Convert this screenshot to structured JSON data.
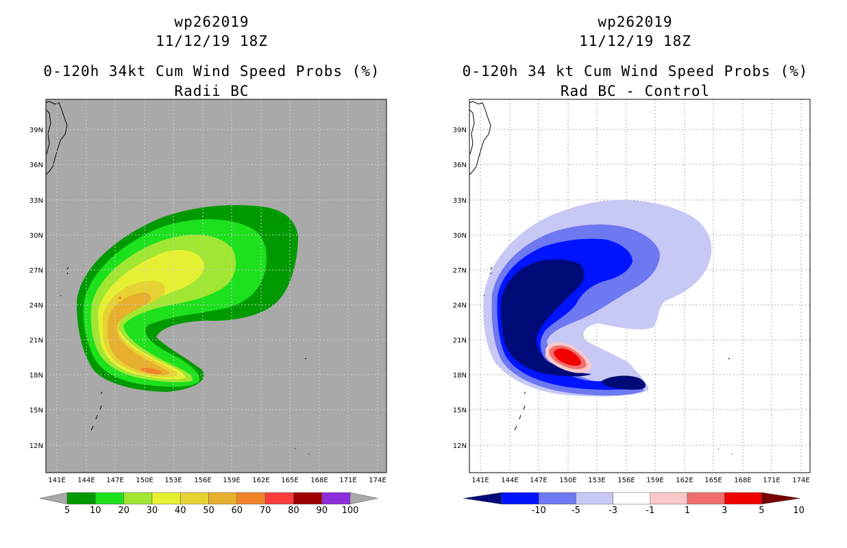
{
  "left_panel": {
    "title": [
      "wp262019",
      "11/12/19 18Z",
      "0-120h 34kt Cum Wind Speed Probs (%)",
      "Radii BC"
    ],
    "lat_labels": [
      "39N",
      "36N",
      "33N",
      "30N",
      "27N",
      "24N",
      "21N",
      "18N",
      "15N",
      "12N"
    ],
    "lon_labels": [
      "141E",
      "144E",
      "147E",
      "150E",
      "153E",
      "156E",
      "159E",
      "162E",
      "165E",
      "168E",
      "171E",
      "174E"
    ],
    "colorbar": {
      "colors": [
        "#009a00",
        "#1ee11e",
        "#a0e632",
        "#e6f032",
        "#e6d232",
        "#e6af2d",
        "#f08228",
        "#fa3c3c",
        "#a00000",
        "#8c2ddc"
      ],
      "labels": [
        "5",
        "10",
        "20",
        "30",
        "40",
        "50",
        "60",
        "70",
        "80",
        "90",
        "100"
      ]
    }
  },
  "right_panel": {
    "title": [
      "wp262019",
      "11/12/19 18Z",
      "0-120h 34 kt Cum Wind Speed Probs (%)",
      "Rad BC - Control"
    ],
    "lat_labels": [
      "39N",
      "36N",
      "33N",
      "30N",
      "27N",
      "24N",
      "21N",
      "18N",
      "15N",
      "12N"
    ],
    "lon_labels": [
      "141E",
      "144E",
      "147E",
      "150E",
      "153E",
      "156E",
      "159E",
      "162E",
      "165E",
      "168E",
      "171E",
      "174E"
    ],
    "colorbar": {
      "colors": [
        "#000a78",
        "#0014ff",
        "#6e78f0",
        "#c8c8f5",
        "#ffffff",
        "#fac8c8",
        "#f06e6e",
        "#f00000",
        "#780000"
      ],
      "labels": [
        "-10",
        "-5",
        "-3",
        "-1",
        "1",
        "3",
        "5",
        "10"
      ]
    }
  },
  "colors": {
    "map_background_left": "#a9a9a9",
    "map_background_right": "#ffffff",
    "gridline": "#aaaaaa"
  }
}
